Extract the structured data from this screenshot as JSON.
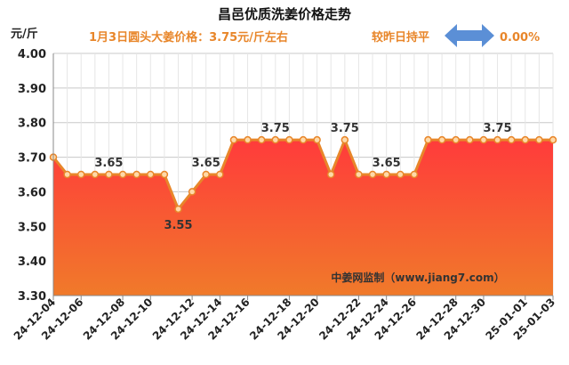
{
  "header": {
    "title": "昌邑优质洗姜价格走势",
    "subtitle": "1月3日圆头大姜价格：3.75元/斤左右",
    "compare_label": "较昨日持平",
    "compare_change": "0.00%",
    "unit": "元/斤",
    "source": "中姜网监制（www.jiang7.com）"
  },
  "colors": {
    "accent": "#e8862a",
    "area_top": "#ff3b3b",
    "area_bottom": "#f07a2a",
    "line": "#e8862a",
    "arrow": "#5b8fd6"
  },
  "icons": {
    "compare": "double-arrow-icon"
  },
  "chart_data": {
    "type": "area",
    "title": "昌邑优质洗姜价格走势",
    "ylabel": "元/斤",
    "ylim": [
      3.3,
      4.0
    ],
    "y_ticks": [
      "3.30",
      "3.40",
      "3.50",
      "3.60",
      "3.70",
      "3.80",
      "3.90",
      "4.00"
    ],
    "grid": true,
    "x_tick_labels": [
      "24-12-04",
      "24-12-06",
      "24-12-08",
      "24-12-10",
      "24-12-12",
      "24-12-14",
      "24-12-16",
      "24-12-18",
      "24-12-20",
      "24-12-22",
      "24-12-24",
      "24-12-26",
      "24-12-28",
      "24-12-30",
      "25-01-01",
      "25-01-03"
    ],
    "values": [
      3.7,
      3.65,
      3.65,
      3.65,
      3.65,
      3.65,
      3.65,
      3.65,
      3.65,
      3.55,
      3.6,
      3.65,
      3.65,
      3.75,
      3.75,
      3.75,
      3.75,
      3.75,
      3.75,
      3.75,
      3.65,
      3.75,
      3.65,
      3.65,
      3.65,
      3.65,
      3.65,
      3.75,
      3.75,
      3.75,
      3.75,
      3.75,
      3.75,
      3.75,
      3.75,
      3.75,
      3.75
    ],
    "data_labels": [
      {
        "index": 4,
        "text": "3.65"
      },
      {
        "index": 9,
        "text": "3.55"
      },
      {
        "index": 11,
        "text": "3.65"
      },
      {
        "index": 16,
        "text": "3.75"
      },
      {
        "index": 21,
        "text": "3.75"
      },
      {
        "index": 24,
        "text": "3.65"
      },
      {
        "index": 32,
        "text": "3.75"
      }
    ]
  }
}
